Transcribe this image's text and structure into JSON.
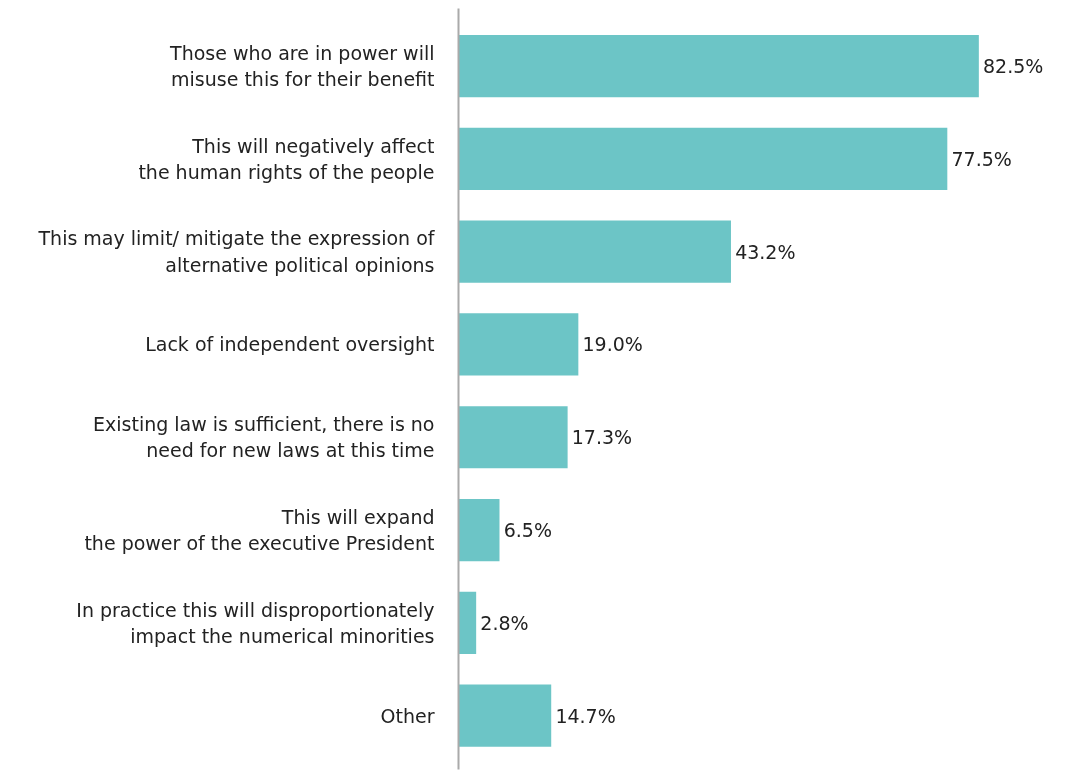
{
  "chart_data": {
    "type": "bar",
    "orientation": "horizontal",
    "categories": [
      "Those who are in power will\nmisuse this for their benefit",
      "This will negatively affect\nthe human rights of the people",
      "This may limit/ mitigate the expression of\nalternative political opinions",
      "Lack of independent oversight",
      "Existing law is sufficient, there is no\nneed for new laws at this time",
      "This will expand\nthe power of the executive President",
      "In practice this will disproportionately\nimpact the numerical minorities",
      "Other"
    ],
    "values": [
      82.5,
      77.5,
      43.2,
      19.0,
      17.3,
      6.5,
      2.8,
      14.7
    ],
    "value_labels": [
      "82.5%",
      "77.5%",
      "43.2%",
      "19.0%",
      "17.3%",
      "6.5%",
      "2.8%",
      "14.7%"
    ],
    "color": "#6cc5c6",
    "grid": false,
    "tick_labels": "y"
  }
}
